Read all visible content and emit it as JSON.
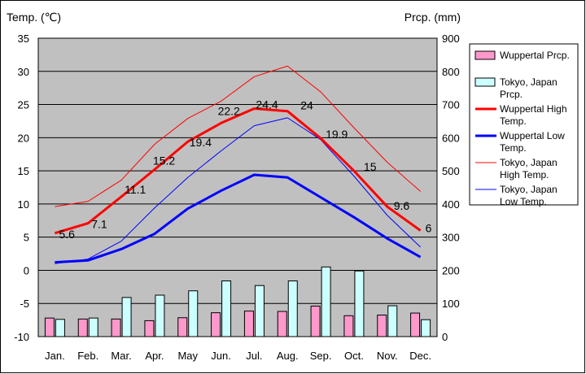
{
  "chart_data": {
    "type": "bar-line-combo",
    "categories": [
      "Jan.",
      "Feb.",
      "Mar.",
      "Apr.",
      "May",
      "Jun.",
      "Jul.",
      "Aug.",
      "Sep.",
      "Oct.",
      "Nov.",
      "Dec."
    ],
    "left_axis": {
      "label": "Temp. (℃)",
      "min": -10,
      "max": 35,
      "step": 5
    },
    "right_axis": {
      "label": "Prcp. (mm)",
      "min": 0,
      "max": 900,
      "step": 100
    },
    "grid": true,
    "legend_position": "right",
    "bar_series": [
      {
        "name": "Wuppertal Prcp.",
        "color": "#ff99cc",
        "values": [
          56,
          53,
          53,
          48,
          57,
          72,
          77,
          76,
          92,
          63,
          65,
          71
        ]
      },
      {
        "name": "Tokyo, Japan Prcp.",
        "color": "#ccffff",
        "values": [
          52,
          56,
          118,
          125,
          138,
          168,
          154,
          168,
          210,
          198,
          93,
          51
        ]
      }
    ],
    "line_series": [
      {
        "name": "Wuppertal High Temp.",
        "color": "#ff0000",
        "width": "thick",
        "values": [
          5.6,
          7.1,
          11.1,
          15.2,
          19.4,
          22.2,
          24.4,
          24,
          19.9,
          15,
          9.6,
          6
        ]
      },
      {
        "name": "Wuppertal Low Temp.",
        "color": "#0000ff",
        "width": "thick",
        "values": [
          1.2,
          1.5,
          3.2,
          5.5,
          9.3,
          12.0,
          14.4,
          14.0,
          11.0,
          8.0,
          4.8,
          2.0
        ]
      },
      {
        "name": "Tokyo, Japan High Temp.",
        "color": "#ff0000",
        "width": "thin",
        "values": [
          9.6,
          10.4,
          13.6,
          19.0,
          22.9,
          25.5,
          29.2,
          30.8,
          26.9,
          21.5,
          16.3,
          11.9
        ]
      },
      {
        "name": "Tokyo, Japan Low Temp.",
        "color": "#0000ff",
        "width": "thin",
        "values": [
          1.0,
          1.7,
          4.4,
          9.4,
          14.0,
          18.0,
          21.8,
          23.0,
          19.7,
          14.2,
          8.3,
          3.5
        ]
      }
    ],
    "data_labels": {
      "series": "Wuppertal High Temp.",
      "labels": [
        "5.6",
        "7.1",
        "11.1",
        "15.2",
        "19.4",
        "22.2",
        "24.4",
        "24",
        "19.9",
        "15",
        "9.6",
        "6"
      ]
    },
    "legend_entries": [
      {
        "lines": [
          "Wuppertal Prcp."
        ]
      },
      {
        "lines": [
          "Tokyo, Japan",
          "Prcp."
        ]
      },
      {
        "lines": [
          "Wuppertal High",
          "Temp."
        ]
      },
      {
        "lines": [
          "Wuppertal Low",
          "Temp."
        ]
      },
      {
        "lines": [
          "Tokyo, Japan",
          "High Temp."
        ]
      },
      {
        "lines": [
          "Tokyo, Japan",
          "Low Temp."
        ]
      }
    ]
  }
}
